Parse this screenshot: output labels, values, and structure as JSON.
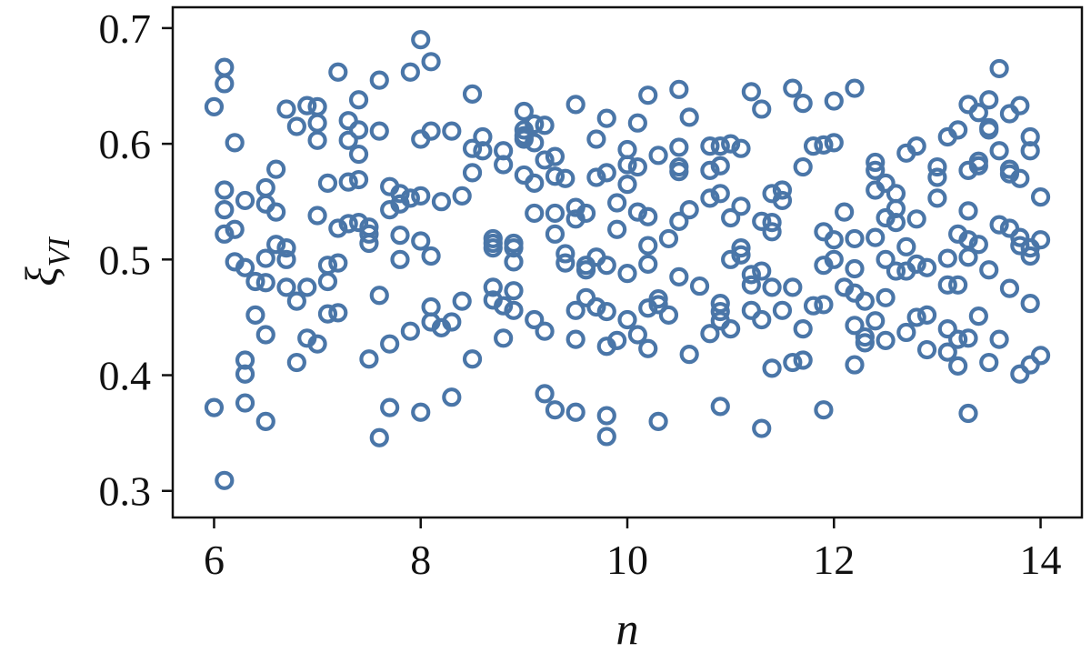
{
  "chart_data": {
    "type": "scatter",
    "title": "",
    "xlabel": "n",
    "ylabel_symbol": "ξ",
    "ylabel_subscript": "VI",
    "xlim": [
      5.6,
      14.4
    ],
    "ylim": [
      0.277,
      0.718
    ],
    "xticks": [
      6,
      8,
      10,
      12,
      14
    ],
    "yticks": [
      0.3,
      0.4,
      0.5,
      0.6,
      0.7
    ],
    "ytick_labels": [
      "0.3",
      "0.4",
      "0.5",
      "0.6",
      "0.7"
    ],
    "xtick_labels": [
      "6",
      "8",
      "10",
      "12",
      "14"
    ],
    "grid": false,
    "marker": "open-circle",
    "color": "#4a76a8",
    "points": [
      [
        6.0,
        0.632
      ],
      [
        6.0,
        0.372
      ],
      [
        6.1,
        0.666
      ],
      [
        6.1,
        0.652
      ],
      [
        6.1,
        0.56
      ],
      [
        6.1,
        0.543
      ],
      [
        6.1,
        0.522
      ],
      [
        6.1,
        0.309
      ],
      [
        6.2,
        0.601
      ],
      [
        6.2,
        0.526
      ],
      [
        6.2,
        0.498
      ],
      [
        6.3,
        0.551
      ],
      [
        6.3,
        0.493
      ],
      [
        6.3,
        0.413
      ],
      [
        6.3,
        0.401
      ],
      [
        6.3,
        0.376
      ],
      [
        6.4,
        0.481
      ],
      [
        6.4,
        0.452
      ],
      [
        6.5,
        0.562
      ],
      [
        6.5,
        0.548
      ],
      [
        6.5,
        0.501
      ],
      [
        6.5,
        0.48
      ],
      [
        6.5,
        0.435
      ],
      [
        6.5,
        0.36
      ],
      [
        6.6,
        0.578
      ],
      [
        6.6,
        0.541
      ],
      [
        6.6,
        0.513
      ],
      [
        6.7,
        0.63
      ],
      [
        6.7,
        0.51
      ],
      [
        6.7,
        0.5
      ],
      [
        6.7,
        0.476
      ],
      [
        6.8,
        0.615
      ],
      [
        6.8,
        0.464
      ],
      [
        6.8,
        0.411
      ],
      [
        6.9,
        0.633
      ],
      [
        6.9,
        0.476
      ],
      [
        6.9,
        0.432
      ],
      [
        7.0,
        0.632
      ],
      [
        7.0,
        0.618
      ],
      [
        7.0,
        0.603
      ],
      [
        7.0,
        0.538
      ],
      [
        7.0,
        0.427
      ],
      [
        7.1,
        0.566
      ],
      [
        7.1,
        0.495
      ],
      [
        7.1,
        0.481
      ],
      [
        7.1,
        0.453
      ],
      [
        7.2,
        0.662
      ],
      [
        7.2,
        0.527
      ],
      [
        7.2,
        0.497
      ],
      [
        7.2,
        0.454
      ],
      [
        7.3,
        0.62
      ],
      [
        7.3,
        0.603
      ],
      [
        7.3,
        0.567
      ],
      [
        7.3,
        0.531
      ],
      [
        7.4,
        0.638
      ],
      [
        7.4,
        0.612
      ],
      [
        7.4,
        0.591
      ],
      [
        7.4,
        0.569
      ],
      [
        7.4,
        0.532
      ],
      [
        7.5,
        0.528
      ],
      [
        7.5,
        0.522
      ],
      [
        7.5,
        0.514
      ],
      [
        7.5,
        0.414
      ],
      [
        7.6,
        0.655
      ],
      [
        7.6,
        0.611
      ],
      [
        7.6,
        0.469
      ],
      [
        7.6,
        0.346
      ],
      [
        7.7,
        0.563
      ],
      [
        7.7,
        0.543
      ],
      [
        7.7,
        0.427
      ],
      [
        7.7,
        0.372
      ],
      [
        7.8,
        0.557
      ],
      [
        7.8,
        0.548
      ],
      [
        7.8,
        0.521
      ],
      [
        7.8,
        0.5
      ],
      [
        7.9,
        0.662
      ],
      [
        7.9,
        0.553
      ],
      [
        7.9,
        0.438
      ],
      [
        8.0,
        0.69
      ],
      [
        8.0,
        0.604
      ],
      [
        8.0,
        0.555
      ],
      [
        8.0,
        0.516
      ],
      [
        8.0,
        0.368
      ],
      [
        8.1,
        0.671
      ],
      [
        8.1,
        0.611
      ],
      [
        8.1,
        0.503
      ],
      [
        8.1,
        0.459
      ],
      [
        8.1,
        0.446
      ],
      [
        8.2,
        0.55
      ],
      [
        8.2,
        0.441
      ],
      [
        8.3,
        0.611
      ],
      [
        8.3,
        0.446
      ],
      [
        8.3,
        0.381
      ],
      [
        8.4,
        0.555
      ],
      [
        8.4,
        0.464
      ],
      [
        8.5,
        0.643
      ],
      [
        8.5,
        0.596
      ],
      [
        8.5,
        0.575
      ],
      [
        8.5,
        0.414
      ],
      [
        8.6,
        0.606
      ],
      [
        8.6,
        0.594
      ],
      [
        8.7,
        0.518
      ],
      [
        8.7,
        0.514
      ],
      [
        8.7,
        0.51
      ],
      [
        8.7,
        0.476
      ],
      [
        8.7,
        0.465
      ],
      [
        8.8,
        0.594
      ],
      [
        8.8,
        0.582
      ],
      [
        8.8,
        0.46
      ],
      [
        8.8,
        0.432
      ],
      [
        8.9,
        0.514
      ],
      [
        8.9,
        0.51
      ],
      [
        8.9,
        0.498
      ],
      [
        8.9,
        0.473
      ],
      [
        8.9,
        0.456
      ],
      [
        9.0,
        0.628
      ],
      [
        9.0,
        0.612
      ],
      [
        9.0,
        0.607
      ],
      [
        9.0,
        0.604
      ],
      [
        9.0,
        0.573
      ],
      [
        9.1,
        0.617
      ],
      [
        9.1,
        0.601
      ],
      [
        9.1,
        0.566
      ],
      [
        9.1,
        0.54
      ],
      [
        9.1,
        0.448
      ],
      [
        9.2,
        0.616
      ],
      [
        9.2,
        0.586
      ],
      [
        9.2,
        0.438
      ],
      [
        9.2,
        0.384
      ],
      [
        9.3,
        0.589
      ],
      [
        9.3,
        0.572
      ],
      [
        9.3,
        0.54
      ],
      [
        9.3,
        0.522
      ],
      [
        9.3,
        0.37
      ],
      [
        9.4,
        0.57
      ],
      [
        9.4,
        0.505
      ],
      [
        9.4,
        0.497
      ],
      [
        9.5,
        0.634
      ],
      [
        9.5,
        0.545
      ],
      [
        9.5,
        0.535
      ],
      [
        9.5,
        0.456
      ],
      [
        9.5,
        0.431
      ],
      [
        9.5,
        0.368
      ],
      [
        9.6,
        0.54
      ],
      [
        9.6,
        0.495
      ],
      [
        9.6,
        0.491
      ],
      [
        9.6,
        0.467
      ],
      [
        9.7,
        0.604
      ],
      [
        9.7,
        0.571
      ],
      [
        9.7,
        0.502
      ],
      [
        9.7,
        0.459
      ],
      [
        9.8,
        0.622
      ],
      [
        9.8,
        0.575
      ],
      [
        9.8,
        0.495
      ],
      [
        9.8,
        0.455
      ],
      [
        9.8,
        0.425
      ],
      [
        9.8,
        0.365
      ],
      [
        9.8,
        0.347
      ],
      [
        9.9,
        0.549
      ],
      [
        9.9,
        0.526
      ],
      [
        9.9,
        0.43
      ],
      [
        10.0,
        0.595
      ],
      [
        10.0,
        0.582
      ],
      [
        10.0,
        0.565
      ],
      [
        10.0,
        0.488
      ],
      [
        10.0,
        0.448
      ],
      [
        10.1,
        0.618
      ],
      [
        10.1,
        0.58
      ],
      [
        10.1,
        0.541
      ],
      [
        10.1,
        0.435
      ],
      [
        10.2,
        0.642
      ],
      [
        10.2,
        0.537
      ],
      [
        10.2,
        0.512
      ],
      [
        10.2,
        0.496
      ],
      [
        10.2,
        0.458
      ],
      [
        10.2,
        0.423
      ],
      [
        10.3,
        0.59
      ],
      [
        10.3,
        0.466
      ],
      [
        10.3,
        0.461
      ],
      [
        10.3,
        0.36
      ],
      [
        10.4,
        0.518
      ],
      [
        10.4,
        0.452
      ],
      [
        10.5,
        0.647
      ],
      [
        10.5,
        0.597
      ],
      [
        10.5,
        0.58
      ],
      [
        10.5,
        0.576
      ],
      [
        10.5,
        0.533
      ],
      [
        10.5,
        0.485
      ],
      [
        10.6,
        0.623
      ],
      [
        10.6,
        0.543
      ],
      [
        10.6,
        0.418
      ],
      [
        10.7,
        0.477
      ],
      [
        10.8,
        0.598
      ],
      [
        10.8,
        0.577
      ],
      [
        10.8,
        0.553
      ],
      [
        10.8,
        0.436
      ],
      [
        10.9,
        0.598
      ],
      [
        10.9,
        0.581
      ],
      [
        10.9,
        0.557
      ],
      [
        10.9,
        0.462
      ],
      [
        10.9,
        0.455
      ],
      [
        10.9,
        0.447
      ],
      [
        10.9,
        0.373
      ],
      [
        11.0,
        0.6
      ],
      [
        11.0,
        0.536
      ],
      [
        11.0,
        0.5
      ],
      [
        11.0,
        0.44
      ],
      [
        11.1,
        0.596
      ],
      [
        11.1,
        0.546
      ],
      [
        11.1,
        0.51
      ],
      [
        11.1,
        0.504
      ],
      [
        11.2,
        0.645
      ],
      [
        11.2,
        0.487
      ],
      [
        11.2,
        0.478
      ],
      [
        11.2,
        0.456
      ],
      [
        11.3,
        0.63
      ],
      [
        11.3,
        0.533
      ],
      [
        11.3,
        0.49
      ],
      [
        11.3,
        0.448
      ],
      [
        11.3,
        0.354
      ],
      [
        11.4,
        0.557
      ],
      [
        11.4,
        0.532
      ],
      [
        11.4,
        0.524
      ],
      [
        11.4,
        0.476
      ],
      [
        11.4,
        0.406
      ],
      [
        11.5,
        0.56
      ],
      [
        11.5,
        0.551
      ],
      [
        11.5,
        0.456
      ],
      [
        11.6,
        0.648
      ],
      [
        11.6,
        0.476
      ],
      [
        11.6,
        0.411
      ],
      [
        11.7,
        0.635
      ],
      [
        11.7,
        0.58
      ],
      [
        11.7,
        0.44
      ],
      [
        11.7,
        0.413
      ],
      [
        11.8,
        0.598
      ],
      [
        11.8,
        0.46
      ],
      [
        11.9,
        0.599
      ],
      [
        11.9,
        0.524
      ],
      [
        11.9,
        0.495
      ],
      [
        11.9,
        0.461
      ],
      [
        11.9,
        0.37
      ],
      [
        12.0,
        0.637
      ],
      [
        12.0,
        0.601
      ],
      [
        12.0,
        0.517
      ],
      [
        12.0,
        0.5
      ],
      [
        12.1,
        0.541
      ],
      [
        12.1,
        0.476
      ],
      [
        12.2,
        0.648
      ],
      [
        12.2,
        0.518
      ],
      [
        12.2,
        0.492
      ],
      [
        12.2,
        0.471
      ],
      [
        12.2,
        0.443
      ],
      [
        12.2,
        0.409
      ],
      [
        12.3,
        0.464
      ],
      [
        12.3,
        0.433
      ],
      [
        12.3,
        0.428
      ],
      [
        12.4,
        0.584
      ],
      [
        12.4,
        0.577
      ],
      [
        12.4,
        0.56
      ],
      [
        12.4,
        0.519
      ],
      [
        12.4,
        0.447
      ],
      [
        12.5,
        0.566
      ],
      [
        12.5,
        0.536
      ],
      [
        12.5,
        0.5
      ],
      [
        12.5,
        0.467
      ],
      [
        12.5,
        0.43
      ],
      [
        12.6,
        0.557
      ],
      [
        12.6,
        0.544
      ],
      [
        12.6,
        0.532
      ],
      [
        12.6,
        0.49
      ],
      [
        12.7,
        0.592
      ],
      [
        12.7,
        0.511
      ],
      [
        12.7,
        0.49
      ],
      [
        12.7,
        0.437
      ],
      [
        12.8,
        0.598
      ],
      [
        12.8,
        0.535
      ],
      [
        12.8,
        0.496
      ],
      [
        12.8,
        0.45
      ],
      [
        12.9,
        0.493
      ],
      [
        12.9,
        0.452
      ],
      [
        12.9,
        0.422
      ],
      [
        13.0,
        0.58
      ],
      [
        13.0,
        0.571
      ],
      [
        13.0,
        0.553
      ],
      [
        13.1,
        0.606
      ],
      [
        13.1,
        0.501
      ],
      [
        13.1,
        0.478
      ],
      [
        13.1,
        0.44
      ],
      [
        13.1,
        0.42
      ],
      [
        13.2,
        0.612
      ],
      [
        13.2,
        0.522
      ],
      [
        13.2,
        0.478
      ],
      [
        13.2,
        0.431
      ],
      [
        13.2,
        0.408
      ],
      [
        13.3,
        0.634
      ],
      [
        13.3,
        0.577
      ],
      [
        13.3,
        0.542
      ],
      [
        13.3,
        0.517
      ],
      [
        13.3,
        0.502
      ],
      [
        13.3,
        0.432
      ],
      [
        13.3,
        0.367
      ],
      [
        13.4,
        0.627
      ],
      [
        13.4,
        0.585
      ],
      [
        13.4,
        0.581
      ],
      [
        13.4,
        0.513
      ],
      [
        13.4,
        0.451
      ],
      [
        13.5,
        0.638
      ],
      [
        13.5,
        0.614
      ],
      [
        13.5,
        0.612
      ],
      [
        13.5,
        0.491
      ],
      [
        13.5,
        0.411
      ],
      [
        13.6,
        0.665
      ],
      [
        13.6,
        0.594
      ],
      [
        13.6,
        0.53
      ],
      [
        13.6,
        0.431
      ],
      [
        13.7,
        0.626
      ],
      [
        13.7,
        0.578
      ],
      [
        13.7,
        0.574
      ],
      [
        13.7,
        0.527
      ],
      [
        13.7,
        0.475
      ],
      [
        13.8,
        0.633
      ],
      [
        13.8,
        0.57
      ],
      [
        13.8,
        0.519
      ],
      [
        13.8,
        0.512
      ],
      [
        13.8,
        0.401
      ],
      [
        13.9,
        0.606
      ],
      [
        13.9,
        0.594
      ],
      [
        13.9,
        0.51
      ],
      [
        13.9,
        0.503
      ],
      [
        13.9,
        0.462
      ],
      [
        13.9,
        0.409
      ],
      [
        14.0,
        0.554
      ],
      [
        14.0,
        0.517
      ],
      [
        14.0,
        0.417
      ]
    ]
  }
}
